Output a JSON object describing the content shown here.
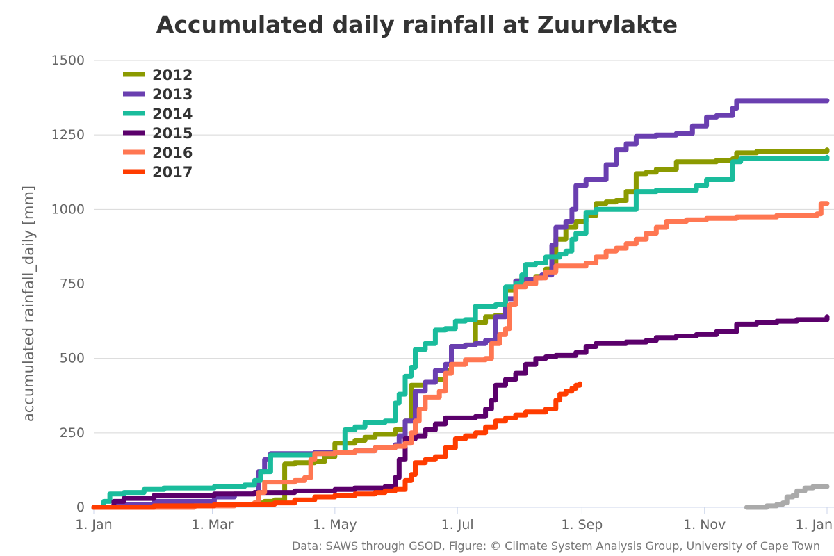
{
  "chart_data": {
    "type": "line",
    "title": "Accumulated daily rainfall at Zuurvlakte",
    "ylabel": "accumulated rainfall_daily [mm]",
    "xlabel": "",
    "credits": "Data: SAWS through GSOD, Figure: © Climate System Analysis Group, University of Cape Town",
    "ylim": [
      0,
      1500
    ],
    "xlim_days": [
      0,
      365
    ],
    "yticks": [
      0,
      250,
      500,
      750,
      1000,
      1250,
      1500
    ],
    "xticks": [
      {
        "day": 0,
        "label": "1. Jan"
      },
      {
        "day": 59,
        "label": "1. Mar"
      },
      {
        "day": 120,
        "label": "1. May"
      },
      {
        "day": 181,
        "label": "1. Jul"
      },
      {
        "day": 243,
        "label": "1. Sep"
      },
      {
        "day": 304,
        "label": "1. Nov"
      },
      {
        "day": 365,
        "label": "1. Jan"
      }
    ],
    "grid": true,
    "legend_position": "top-left",
    "series": [
      {
        "name": "2012",
        "color": "#8b9a00",
        "points": [
          [
            0,
            0
          ],
          [
            20,
            5
          ],
          [
            50,
            10
          ],
          [
            80,
            15
          ],
          [
            85,
            20
          ],
          [
            90,
            25
          ],
          [
            95,
            145
          ],
          [
            100,
            150
          ],
          [
            110,
            155
          ],
          [
            115,
            170
          ],
          [
            120,
            215
          ],
          [
            130,
            225
          ],
          [
            135,
            235
          ],
          [
            140,
            245
          ],
          [
            150,
            260
          ],
          [
            155,
            290
          ],
          [
            158,
            410
          ],
          [
            165,
            420
          ],
          [
            170,
            430
          ],
          [
            175,
            460
          ],
          [
            178,
            540
          ],
          [
            185,
            545
          ],
          [
            190,
            620
          ],
          [
            195,
            640
          ],
          [
            200,
            645
          ],
          [
            205,
            730
          ],
          [
            210,
            760
          ],
          [
            215,
            765
          ],
          [
            220,
            775
          ],
          [
            225,
            800
          ],
          [
            230,
            900
          ],
          [
            235,
            940
          ],
          [
            240,
            960
          ],
          [
            245,
            980
          ],
          [
            250,
            1020
          ],
          [
            255,
            1025
          ],
          [
            260,
            1030
          ],
          [
            265,
            1060
          ],
          [
            270,
            1120
          ],
          [
            275,
            1125
          ],
          [
            280,
            1135
          ],
          [
            290,
            1160
          ],
          [
            300,
            1160
          ],
          [
            310,
            1165
          ],
          [
            318,
            1170
          ],
          [
            320,
            1190
          ],
          [
            330,
            1195
          ],
          [
            355,
            1195
          ],
          [
            365,
            1200
          ]
        ]
      },
      {
        "name": "2013",
        "color": "#6a3fb0",
        "points": [
          [
            0,
            0
          ],
          [
            10,
            10
          ],
          [
            30,
            20
          ],
          [
            60,
            35
          ],
          [
            70,
            45
          ],
          [
            80,
            50
          ],
          [
            82,
            120
          ],
          [
            85,
            160
          ],
          [
            88,
            180
          ],
          [
            95,
            180
          ],
          [
            110,
            185
          ],
          [
            130,
            190
          ],
          [
            140,
            200
          ],
          [
            150,
            210
          ],
          [
            152,
            240
          ],
          [
            155,
            290
          ],
          [
            160,
            390
          ],
          [
            165,
            420
          ],
          [
            170,
            460
          ],
          [
            175,
            480
          ],
          [
            178,
            540
          ],
          [
            185,
            545
          ],
          [
            190,
            550
          ],
          [
            195,
            560
          ],
          [
            200,
            640
          ],
          [
            205,
            700
          ],
          [
            210,
            760
          ],
          [
            215,
            765
          ],
          [
            220,
            770
          ],
          [
            223,
            780
          ],
          [
            228,
            880
          ],
          [
            230,
            940
          ],
          [
            235,
            960
          ],
          [
            238,
            1000
          ],
          [
            240,
            1080
          ],
          [
            245,
            1100
          ],
          [
            250,
            1100
          ],
          [
            255,
            1150
          ],
          [
            260,
            1200
          ],
          [
            265,
            1220
          ],
          [
            270,
            1245
          ],
          [
            280,
            1250
          ],
          [
            290,
            1255
          ],
          [
            298,
            1280
          ],
          [
            305,
            1310
          ],
          [
            310,
            1315
          ],
          [
            318,
            1340
          ],
          [
            320,
            1365
          ],
          [
            330,
            1365
          ],
          [
            365,
            1365
          ]
        ]
      },
      {
        "name": "2014",
        "color": "#1abc9c",
        "points": [
          [
            0,
            0
          ],
          [
            5,
            20
          ],
          [
            8,
            45
          ],
          [
            15,
            50
          ],
          [
            25,
            60
          ],
          [
            35,
            65
          ],
          [
            45,
            65
          ],
          [
            60,
            70
          ],
          [
            70,
            70
          ],
          [
            75,
            75
          ],
          [
            80,
            90
          ],
          [
            83,
            120
          ],
          [
            88,
            175
          ],
          [
            100,
            175
          ],
          [
            110,
            180
          ],
          [
            115,
            180
          ],
          [
            120,
            185
          ],
          [
            125,
            260
          ],
          [
            130,
            270
          ],
          [
            135,
            285
          ],
          [
            145,
            290
          ],
          [
            150,
            350
          ],
          [
            152,
            380
          ],
          [
            155,
            440
          ],
          [
            158,
            470
          ],
          [
            160,
            530
          ],
          [
            165,
            550
          ],
          [
            170,
            595
          ],
          [
            175,
            600
          ],
          [
            180,
            625
          ],
          [
            185,
            630
          ],
          [
            190,
            675
          ],
          [
            200,
            680
          ],
          [
            205,
            740
          ],
          [
            210,
            750
          ],
          [
            213,
            780
          ],
          [
            215,
            815
          ],
          [
            220,
            820
          ],
          [
            225,
            840
          ],
          [
            232,
            850
          ],
          [
            235,
            860
          ],
          [
            238,
            900
          ],
          [
            240,
            920
          ],
          [
            245,
            990
          ],
          [
            250,
            1000
          ],
          [
            262,
            1000
          ],
          [
            270,
            1060
          ],
          [
            280,
            1065
          ],
          [
            290,
            1065
          ],
          [
            300,
            1080
          ],
          [
            305,
            1100
          ],
          [
            310,
            1100
          ],
          [
            318,
            1160
          ],
          [
            322,
            1170
          ],
          [
            330,
            1170
          ],
          [
            365,
            1175
          ]
        ]
      },
      {
        "name": "2015",
        "color": "#5b006b",
        "points": [
          [
            0,
            0
          ],
          [
            10,
            20
          ],
          [
            15,
            30
          ],
          [
            30,
            40
          ],
          [
            60,
            45
          ],
          [
            80,
            50
          ],
          [
            100,
            55
          ],
          [
            120,
            60
          ],
          [
            130,
            65
          ],
          [
            145,
            70
          ],
          [
            150,
            100
          ],
          [
            152,
            160
          ],
          [
            155,
            230
          ],
          [
            160,
            240
          ],
          [
            165,
            260
          ],
          [
            170,
            280
          ],
          [
            175,
            300
          ],
          [
            190,
            305
          ],
          [
            195,
            330
          ],
          [
            198,
            360
          ],
          [
            200,
            410
          ],
          [
            205,
            430
          ],
          [
            210,
            450
          ],
          [
            215,
            480
          ],
          [
            220,
            500
          ],
          [
            225,
            505
          ],
          [
            230,
            510
          ],
          [
            240,
            520
          ],
          [
            245,
            540
          ],
          [
            250,
            550
          ],
          [
            265,
            555
          ],
          [
            275,
            560
          ],
          [
            280,
            570
          ],
          [
            290,
            575
          ],
          [
            300,
            580
          ],
          [
            310,
            590
          ],
          [
            320,
            615
          ],
          [
            330,
            620
          ],
          [
            340,
            625
          ],
          [
            350,
            630
          ],
          [
            365,
            640
          ]
        ]
      },
      {
        "name": "2016",
        "color": "#ff7752",
        "points": [
          [
            0,
            0
          ],
          [
            50,
            5
          ],
          [
            70,
            10
          ],
          [
            80,
            15
          ],
          [
            82,
            50
          ],
          [
            85,
            85
          ],
          [
            100,
            90
          ],
          [
            105,
            100
          ],
          [
            108,
            160
          ],
          [
            110,
            180
          ],
          [
            120,
            185
          ],
          [
            130,
            190
          ],
          [
            140,
            200
          ],
          [
            150,
            205
          ],
          [
            155,
            215
          ],
          [
            158,
            250
          ],
          [
            160,
            290
          ],
          [
            162,
            330
          ],
          [
            165,
            370
          ],
          [
            172,
            390
          ],
          [
            175,
            450
          ],
          [
            178,
            480
          ],
          [
            185,
            495
          ],
          [
            195,
            500
          ],
          [
            198,
            550
          ],
          [
            202,
            580
          ],
          [
            205,
            600
          ],
          [
            207,
            680
          ],
          [
            210,
            740
          ],
          [
            215,
            750
          ],
          [
            220,
            770
          ],
          [
            225,
            790
          ],
          [
            230,
            810
          ],
          [
            245,
            820
          ],
          [
            250,
            840
          ],
          [
            255,
            860
          ],
          [
            260,
            870
          ],
          [
            265,
            885
          ],
          [
            270,
            900
          ],
          [
            275,
            920
          ],
          [
            280,
            940
          ],
          [
            285,
            960
          ],
          [
            295,
            965
          ],
          [
            305,
            970
          ],
          [
            320,
            975
          ],
          [
            340,
            980
          ],
          [
            360,
            985
          ],
          [
            362,
            1020
          ],
          [
            365,
            1020
          ]
        ]
      },
      {
        "name": "2017",
        "color": "#ff3c00",
        "points": [
          [
            0,
            0
          ],
          [
            30,
            5
          ],
          [
            60,
            10
          ],
          [
            90,
            15
          ],
          [
            100,
            25
          ],
          [
            110,
            35
          ],
          [
            120,
            40
          ],
          [
            130,
            45
          ],
          [
            140,
            50
          ],
          [
            145,
            55
          ],
          [
            150,
            60
          ],
          [
            155,
            90
          ],
          [
            158,
            110
          ],
          [
            160,
            150
          ],
          [
            165,
            160
          ],
          [
            170,
            170
          ],
          [
            175,
            200
          ],
          [
            180,
            230
          ],
          [
            185,
            240
          ],
          [
            190,
            250
          ],
          [
            195,
            270
          ],
          [
            200,
            290
          ],
          [
            205,
            300
          ],
          [
            210,
            310
          ],
          [
            215,
            320
          ],
          [
            225,
            330
          ],
          [
            230,
            360
          ],
          [
            232,
            380
          ],
          [
            235,
            390
          ],
          [
            238,
            400
          ],
          [
            240,
            410
          ],
          [
            242,
            415
          ]
        ]
      },
      {
        "color": "#aaaaaa",
        "points": [
          [
            325,
            0
          ],
          [
            335,
            5
          ],
          [
            340,
            10
          ],
          [
            343,
            15
          ],
          [
            345,
            35
          ],
          [
            348,
            40
          ],
          [
            350,
            55
          ],
          [
            354,
            65
          ],
          [
            358,
            70
          ],
          [
            365,
            70
          ]
        ]
      }
    ]
  }
}
